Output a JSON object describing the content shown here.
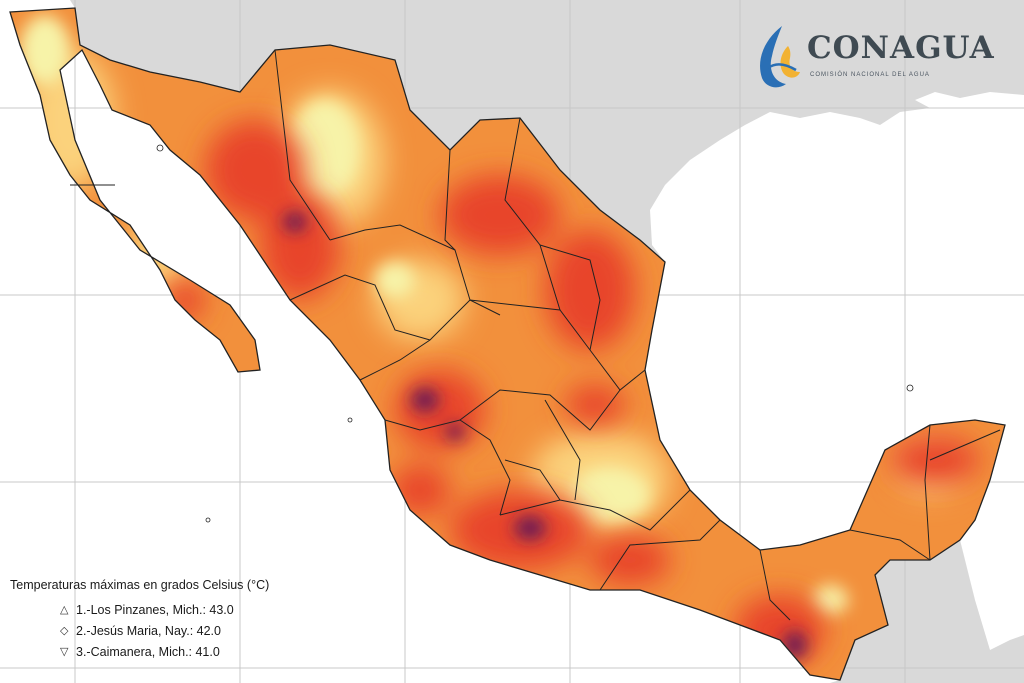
{
  "logo": {
    "name": "CONAGUA",
    "subtitle": "COMISIÓN NACIONAL DEL AGUA"
  },
  "legend": {
    "title": "Temperaturas máximas en grados Celsius (°C)",
    "items": [
      {
        "marker": "△",
        "text": "1.-Los Pinzanes, Mich.: 43.0"
      },
      {
        "marker": "◇",
        "text": "2.-Jesús Maria, Nay.: 42.0"
      },
      {
        "marker": "▽",
        "text": "3.-Caimanera, Mich.: 41.0"
      }
    ]
  },
  "colors": {
    "sea": "#ffffff",
    "foreign_land": "#d9d9d9",
    "base_land": "#f2903c",
    "cool": "#f7f3a8",
    "mild": "#fbd27c",
    "hot": "#e8452a",
    "hottest": "#6b1d55",
    "graticule": "#c8c8c8",
    "borders": "#222222"
  }
}
